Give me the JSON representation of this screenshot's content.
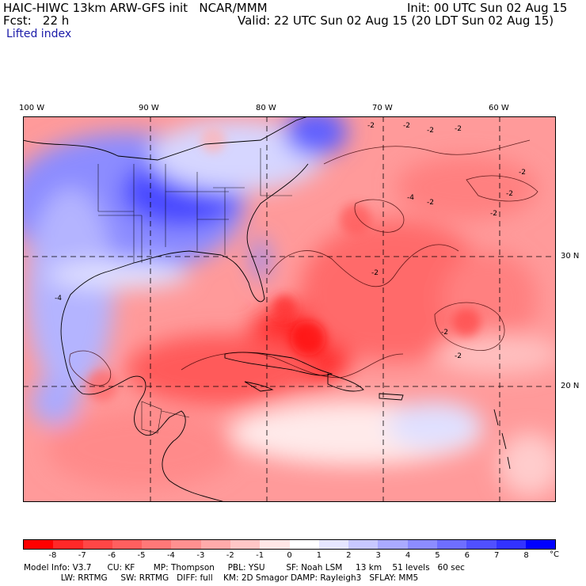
{
  "header": {
    "model_line": "HAIC-HIWC 13km ARW-GFS init   NCAR/MMM",
    "init_line": "Init: 00 UTC Sun 02 Aug 15",
    "fcst_line": "Fcst:   22 h",
    "valid_line": "Valid: 22 UTC Sun 02 Aug 15 (20 LDT Sun 02 Aug 15)",
    "field": "Lifted index"
  },
  "map": {
    "lon_labels": [
      "100 W",
      "90 W",
      "80 W",
      "70 W",
      "60 W"
    ],
    "lat_labels": [
      "30 N",
      "20 N"
    ],
    "contour_labels": [
      "-2",
      "-2",
      "-2",
      "-2",
      "-2",
      "-2",
      "-2",
      "-2",
      "-2",
      "-2",
      "-4",
      "-4",
      "-2"
    ]
  },
  "colorbar": {
    "tick_labels": [
      "-8",
      "-7",
      "-6",
      "-5",
      "-4",
      "-3",
      "-2",
      "-1",
      "0",
      "1",
      "2",
      "3",
      "4",
      "5",
      "6",
      "7",
      "8"
    ],
    "unit": "°C",
    "colors": [
      "#ff0000",
      "#ff2828",
      "#ff4646",
      "#ff5f5f",
      "#ff7878",
      "#ff9090",
      "#ffaaaa",
      "#ffc6c6",
      "#ffe6e6",
      "#ffffff",
      "#e6e6ff",
      "#c8c8ff",
      "#aaaaff",
      "#8c8cff",
      "#6e6eff",
      "#5050ff",
      "#3232ff",
      "#0000ff"
    ]
  },
  "footer": {
    "line1": "Model Info: V3.7      CU: KF       MP: Thompson     PBL: YSU        SF: Noah LSM     13 km    51 levels   60 sec",
    "line2": "              LW: RRTMG     SW: RRTMG   DIFF: full    KM: 2D Smagor DAMP: Rayleigh3   SFLAY: MM5"
  }
}
